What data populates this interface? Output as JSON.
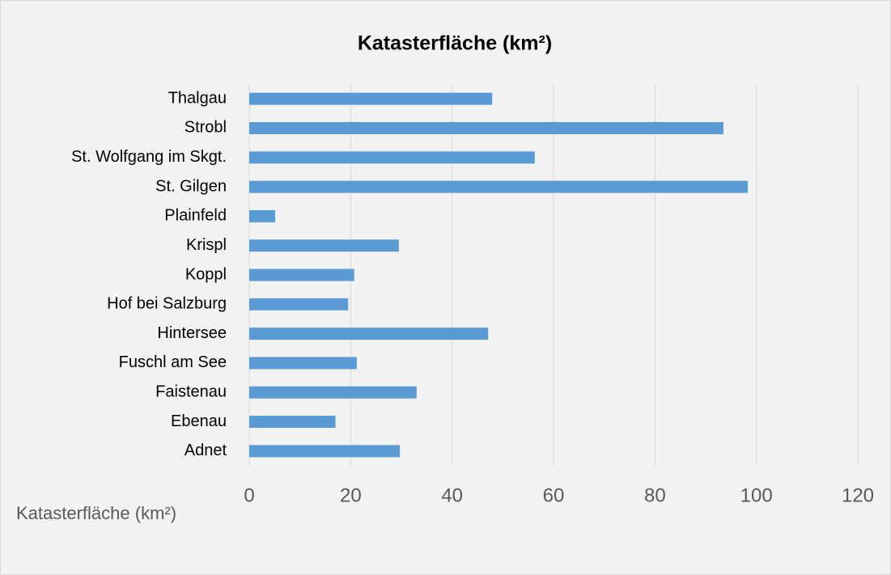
{
  "chart_data": {
    "type": "hbar",
    "title": "Katasterfläche (km²)",
    "categories": [
      "Adnet",
      "Ebenau",
      "Faistenau",
      "Fuschl am See",
      "Hintersee",
      "Hof bei Salzburg",
      "Koppl",
      "Krispl",
      "Plainfeld",
      "St. Gilgen",
      "St. Wolfgang im Skgt.",
      "Strobl",
      "Thalgau"
    ],
    "series": [
      {
        "name": "Katasterfläche (km²)",
        "color": "#5b9bd5",
        "values": [
          29.7,
          17,
          33,
          21.2,
          47.1,
          19.5,
          20.7,
          29.5,
          5.1,
          98.3,
          56.3,
          93.5,
          47.9
        ]
      }
    ],
    "xlim": [
      0,
      120
    ],
    "xticks": [
      0,
      20,
      40,
      60,
      80,
      100,
      120
    ],
    "grid": true,
    "legend": "bottom-left"
  }
}
